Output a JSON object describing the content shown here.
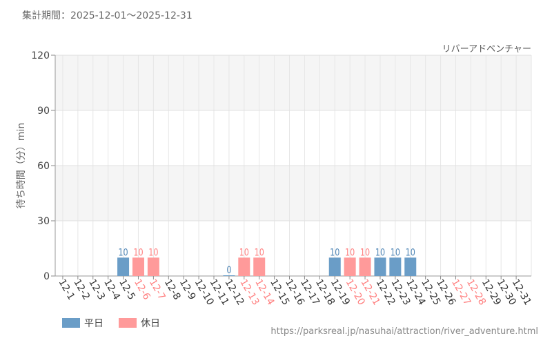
{
  "period_label": "集計期間：2025-12-01～2025-12-31",
  "attraction_label": "リバーアドベンチャー",
  "source_url": "https://parksreal.jp/nasuhai/attraction/river_adventure.html",
  "colors": {
    "weekday": "#6a9dc7",
    "holiday": "#ff9a9a",
    "weekday_text": "#4f86b6",
    "holiday_text": "#ff7f7f"
  },
  "chart_data": {
    "type": "bar",
    "ylabel": "待ち時間（分）min",
    "ylim": [
      0,
      120
    ],
    "yticks": [
      0,
      30,
      60,
      90,
      120
    ],
    "grid": true,
    "legend_position": "bottom-left",
    "legend": [
      {
        "key": "weekday",
        "label": "平日"
      },
      {
        "key": "holiday",
        "label": "休日"
      }
    ],
    "categories": [
      "12-1",
      "12-2",
      "12-3",
      "12-4",
      "12-5",
      "12-6",
      "12-7",
      "12-8",
      "12-9",
      "12-10",
      "12-11",
      "12-12",
      "12-13",
      "12-14",
      "12-15",
      "12-16",
      "12-17",
      "12-18",
      "12-19",
      "12-20",
      "12-21",
      "12-22",
      "12-23",
      "12-24",
      "12-25",
      "12-26",
      "12-27",
      "12-28",
      "12-29",
      "12-30",
      "12-31"
    ],
    "day_type": [
      "weekday",
      "weekday",
      "weekday",
      "weekday",
      "weekday",
      "holiday",
      "holiday",
      "weekday",
      "weekday",
      "weekday",
      "weekday",
      "weekday",
      "holiday",
      "holiday",
      "weekday",
      "weekday",
      "weekday",
      "weekday",
      "weekday",
      "holiday",
      "holiday",
      "weekday",
      "weekday",
      "weekday",
      "weekday",
      "weekday",
      "holiday",
      "holiday",
      "weekday",
      "weekday",
      "weekday"
    ],
    "values": [
      null,
      null,
      null,
      null,
      10,
      10,
      10,
      null,
      null,
      null,
      null,
      0,
      10,
      10,
      null,
      null,
      null,
      null,
      10,
      10,
      10,
      10,
      10,
      10,
      null,
      null,
      null,
      null,
      null,
      null,
      null
    ]
  }
}
